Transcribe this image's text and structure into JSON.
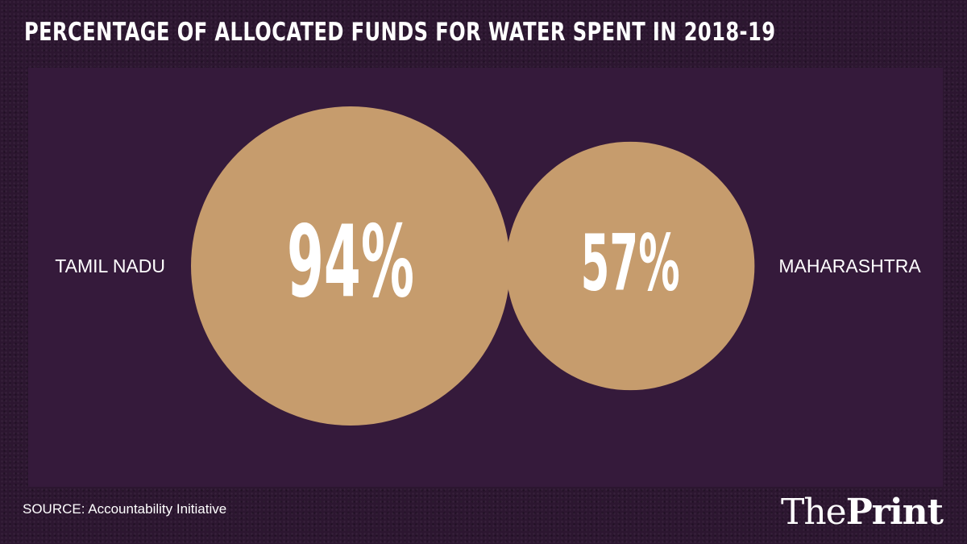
{
  "title": "PERCENTAGE OF ALLOCATED FUNDS FOR WATER SPENT IN 2018-19",
  "source": "SOURCE: Accountability Initiative",
  "logo": {
    "part1": "The",
    "part2": "Print"
  },
  "colors": {
    "background": "#2c1630",
    "panel": "#351a3b",
    "bubble": "#c69c6d",
    "text": "#ffffff"
  },
  "chart_data": {
    "type": "bubble",
    "title": "PERCENTAGE OF ALLOCATED FUNDS FOR WATER SPENT IN 2018-19",
    "categories": [
      "TAMIL NADU",
      "MAHARASHTRA"
    ],
    "values": [
      94,
      57
    ],
    "labels": [
      "94%",
      "57%"
    ],
    "unit": "%"
  }
}
